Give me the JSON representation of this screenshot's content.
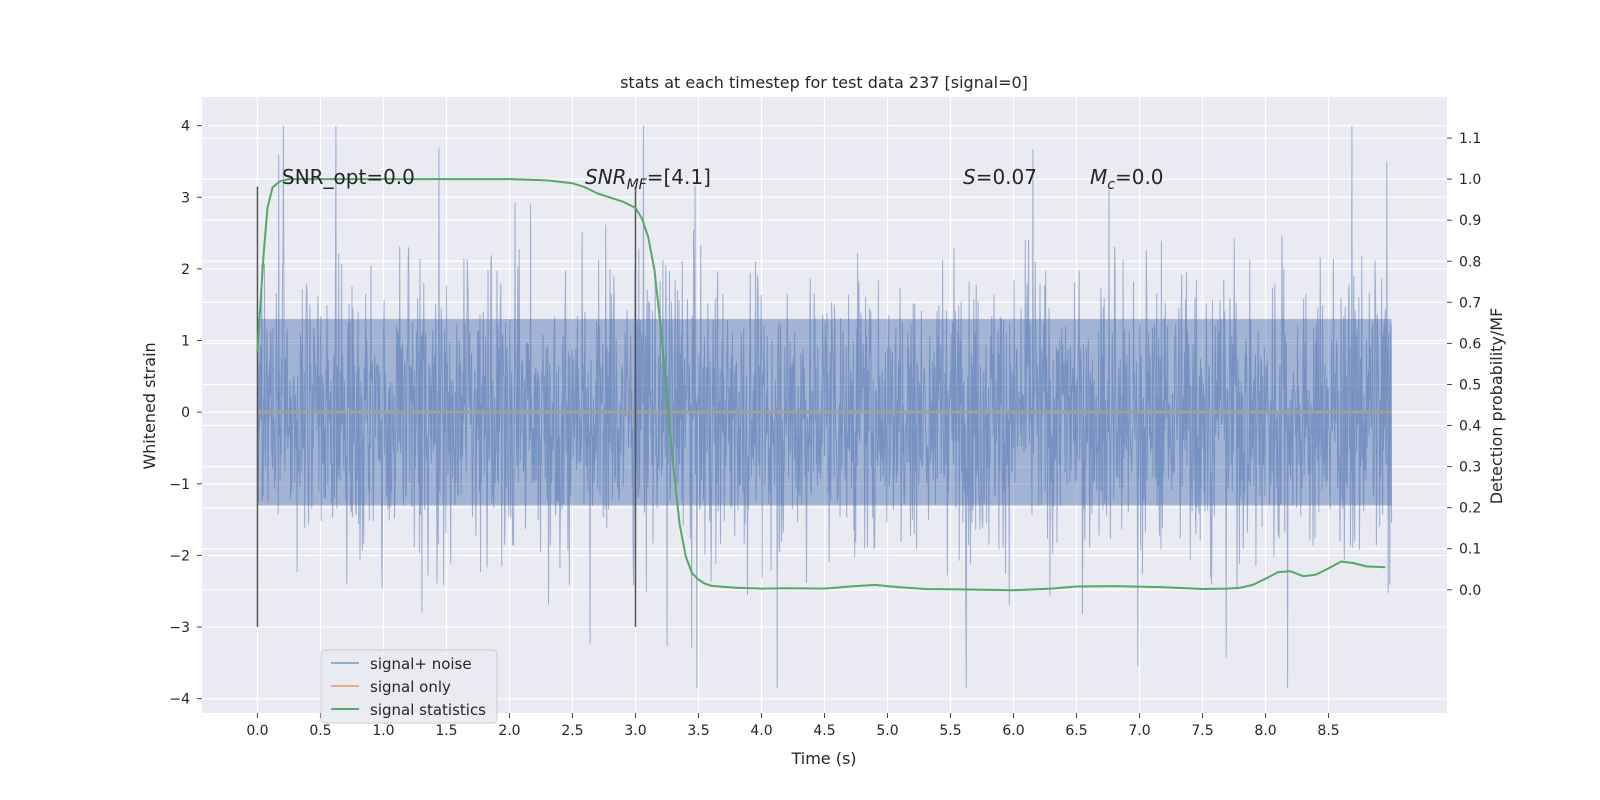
{
  "chart_data": {
    "type": "line",
    "title": "stats at each timestep for test data 237 [signal=0]",
    "xlabel": "Time (s)",
    "ylabel": "Whitened strain",
    "ylabel_right": "Detection probability/MF",
    "xlim": [
      -0.44,
      9.44
    ],
    "ylim": [
      -4.2,
      4.4
    ],
    "ylim_right": [
      -0.3,
      1.2
    ],
    "x_ticks": [
      "0.0",
      "0.5",
      "1.0",
      "1.5",
      "2.0",
      "2.5",
      "3.0",
      "3.5",
      "4.0",
      "4.5",
      "5.0",
      "5.5",
      "6.0",
      "6.5",
      "7.0",
      "7.5",
      "8.0",
      "8.5"
    ],
    "y_ticks": [
      "4",
      "3",
      "2",
      "1",
      "0",
      "−1",
      "−2",
      "−3",
      "−4"
    ],
    "y_ticks_right": [
      "1.1",
      "1.0",
      "0.9",
      "0.8",
      "0.7",
      "0.6",
      "0.5",
      "0.4",
      "0.3",
      "0.2",
      "0.1",
      "0.0"
    ],
    "grid": true,
    "background": "#eaeaf2",
    "legend_position": "lower-left",
    "legend": [
      "signal+ noise",
      "signal only",
      "signal statistics"
    ],
    "annotations": [
      {
        "text": "SNR_opt=0.0"
      },
      {
        "text": "SNR_MF=[4.1]",
        "main": "SNR",
        "sub": "MF",
        "rest": "=[4.1]"
      },
      {
        "text": "S=0.07",
        "main": "S",
        "rest": "=0.07"
      },
      {
        "text": "M_c=0.0",
        "main": "M",
        "sub": "c",
        "rest": "=0.0"
      }
    ],
    "vertical_lines": [
      {
        "x": 0.0,
        "y_range": [
          -3.0,
          3.15
        ]
      },
      {
        "x": 3.0,
        "y_range": [
          -3.0,
          3.15
        ]
      }
    ],
    "series": [
      {
        "name": "signal+ noise",
        "color": "#4c72b0",
        "t_range": [
          0.0,
          9.0
        ],
        "typical_amplitude": 1.3,
        "peak_range": [
          -3.85,
          4.0
        ]
      },
      {
        "name": "signal only",
        "color": "#dd8452",
        "t_range": [
          0.0,
          9.0
        ],
        "values": [
          0.0
        ]
      },
      {
        "name": "signal statistics",
        "color": "#55a868",
        "axis": "right",
        "x": [
          0.0,
          0.05,
          0.08,
          0.12,
          0.18,
          0.25,
          0.4,
          1.0,
          2.0,
          2.3,
          2.5,
          2.6,
          2.7,
          2.8,
          2.9,
          3.0,
          3.05,
          3.1,
          3.15,
          3.2,
          3.25,
          3.3,
          3.35,
          3.4,
          3.45,
          3.5,
          3.55,
          3.6,
          3.7,
          3.8,
          4.0,
          4.2,
          4.5,
          4.7,
          4.9,
          5.1,
          5.3,
          5.6,
          6.0,
          6.3,
          6.5,
          6.8,
          7.2,
          7.5,
          7.7,
          7.8,
          7.9,
          8.0,
          8.1,
          8.2,
          8.3,
          8.4,
          8.5,
          8.6,
          8.7,
          8.8,
          8.95
        ],
        "values": [
          0.58,
          0.82,
          0.93,
          0.98,
          0.995,
          1.0,
          1.0,
          1.0,
          1.0,
          0.997,
          0.99,
          0.98,
          0.965,
          0.955,
          0.945,
          0.93,
          0.905,
          0.86,
          0.78,
          0.64,
          0.47,
          0.3,
          0.16,
          0.08,
          0.04,
          0.025,
          0.015,
          0.01,
          0.007,
          0.005,
          0.003,
          0.004,
          0.003,
          0.008,
          0.012,
          0.006,
          0.002,
          0.001,
          -0.001,
          0.003,
          0.008,
          0.009,
          0.006,
          0.002,
          0.003,
          0.005,
          0.012,
          0.027,
          0.043,
          0.045,
          0.033,
          0.037,
          0.052,
          0.069,
          0.065,
          0.057,
          0.055
        ]
      }
    ]
  }
}
